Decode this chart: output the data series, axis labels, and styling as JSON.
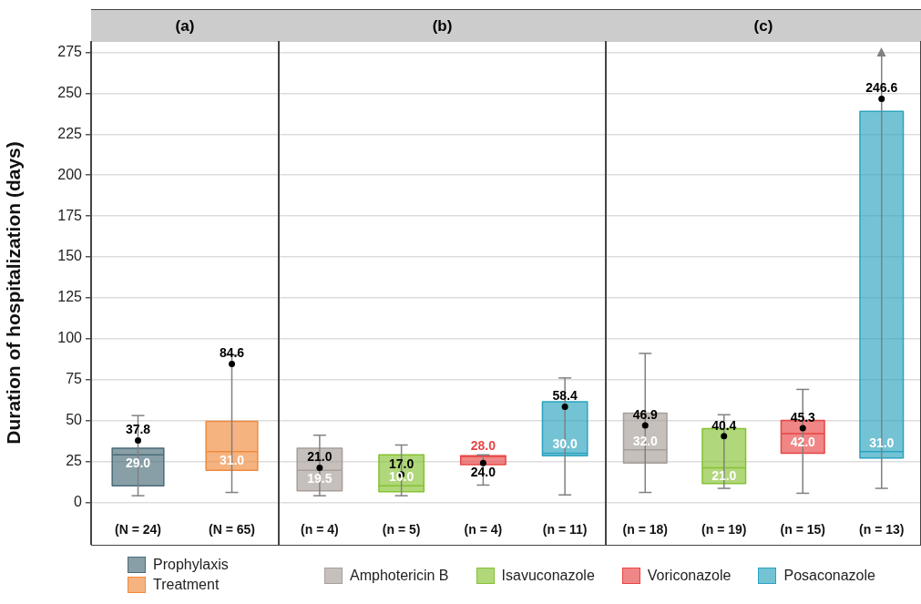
{
  "chart_data": [
    {
      "type": "box",
      "title": "(a)",
      "ylabel": "Duration of hospitalization (days)",
      "categories": [
        "(N = 24)",
        "(N = 65)"
      ],
      "ylim": [
        -26,
        282
      ],
      "yticks": [
        0,
        25,
        50,
        75,
        100,
        125,
        150,
        175,
        200,
        225,
        250,
        275
      ],
      "grid": "y",
      "legend": "bottom",
      "marker": "circle",
      "series": [
        {
          "name": "Prophylaxis",
          "color": "#4a6b78",
          "boxes": [
            {
              "low": 4,
              "q1": 10,
              "median": 29.0,
              "q3": 33,
              "high": 53,
              "mean": 37.8
            },
            null
          ]
        },
        {
          "name": "Treatment",
          "color": "#f08a3c",
          "boxes": [
            null,
            {
              "low": 6,
              "q1": 19.5,
              "median": 31.0,
              "q3": 49.5,
              "high": 90,
              "mean": 84.6
            }
          ]
        }
      ],
      "annotations": [
        {
          "text": "29.0",
          "x": "(N = 24)",
          "y": 29.0
        },
        {
          "text": "37.8",
          "x": "(N = 24)",
          "y": 37.8
        },
        {
          "text": "31.0",
          "x": "(N = 65)",
          "y": 31.0
        },
        {
          "text": "84.6",
          "x": "(N = 65)",
          "y": 84.6
        }
      ]
    },
    {
      "type": "box",
      "title": "(b)",
      "categories": [
        "(n = 4)",
        "(n = 5)",
        "(n = 4)",
        "(n = 11)"
      ],
      "ylim": [
        -26,
        282
      ],
      "yticks": [
        0,
        25,
        50,
        75,
        100,
        125,
        150,
        175,
        200,
        225,
        250,
        275
      ],
      "grid": "y",
      "tick_labels": "x",
      "marker": "circle",
      "series": [
        {
          "color": "#a89e98",
          "boxes": [
            {
              "low": 4,
              "q1": 7,
              "median": 19.5,
              "q3": 33,
              "high": 41,
              "mean": 21.0
            },
            null,
            null,
            null
          ]
        },
        {
          "color": "#86c232",
          "boxes": [
            null,
            {
              "low": 4,
              "q1": 6.5,
              "median": 10.0,
              "q3": 29,
              "high": 35,
              "mean": 17.0
            },
            null,
            null
          ]
        },
        {
          "color": "#e84545",
          "boxes": [
            null,
            null,
            {
              "low": 10.5,
              "q1": 23,
              "median": 28.0,
              "q3": 28.5,
              "high": 29,
              "mean": 24.0
            },
            null
          ]
        },
        {
          "color": "#2aa3bf",
          "boxes": [
            null,
            null,
            null,
            {
              "low": 4.5,
              "q1": 28.5,
              "median": 30.0,
              "q3": 61.5,
              "high": 76,
              "mean": 58.4
            }
          ]
        }
      ],
      "annotations": [
        {
          "text": "19.5",
          "x": "(n = 4)",
          "y": 19.5
        },
        {
          "text": "21.0",
          "x": "(n = 4)",
          "y": 21.0
        },
        {
          "text": "10.0",
          "x": "(n = 5)",
          "y": 10.0
        },
        {
          "text": "17.0",
          "x": "(n = 5)",
          "y": 17.0
        },
        {
          "text": "28.0",
          "y": 28.0
        },
        {
          "text": "24.0",
          "y": 24.0
        },
        {
          "text": "30.0",
          "x": "(n = 11)",
          "y": 30.0
        },
        {
          "text": "58.4",
          "x": "(n = 11)",
          "y": 58.4
        }
      ]
    },
    {
      "type": "box",
      "title": "(c)",
      "categories": [
        "(n = 18)",
        "(n = 19)",
        "(n = 15)",
        "(n = 13)"
      ],
      "ylim": [
        -26,
        282
      ],
      "yticks": [
        0,
        25,
        50,
        75,
        100,
        125,
        150,
        175,
        200,
        225,
        250,
        275
      ],
      "grid": "y",
      "tick_labels": "x",
      "legend": "bottom",
      "marker": "circle",
      "series": [
        {
          "name": "Amphotericin B",
          "color": "#a89e98",
          "boxes": [
            {
              "low": 6,
              "q1": 24,
              "median": 32.0,
              "q3": 54.5,
              "high": 91,
              "mean": 46.9
            },
            null,
            null,
            null
          ]
        },
        {
          "name": "Isavuconazole",
          "color": "#86c232",
          "boxes": [
            null,
            {
              "low": 8.5,
              "q1": 11.5,
              "median": 21.0,
              "q3": 45,
              "high": 53.5,
              "mean": 40.4
            },
            null,
            null
          ]
        },
        {
          "name": "Voriconazole",
          "color": "#e84545",
          "boxes": [
            null,
            null,
            {
              "low": 5.5,
              "q1": 30,
              "median": 42.0,
              "q3": 50,
              "high": 69,
              "mean": 45.3
            },
            null
          ]
        },
        {
          "name": "Posaconazole",
          "color": "#2aa3bf",
          "boxes": [
            null,
            null,
            null,
            {
              "low": 8.5,
              "q1": 27,
              "median": 31.0,
              "q3": 239,
              "high": 275,
              "mean": 246.6
            }
          ]
        }
      ],
      "annotations": [
        {
          "text": "32.0",
          "x": "(n = 18)",
          "y": 32.0
        },
        {
          "text": "46.9",
          "x": "(n = 18)",
          "y": 46.9
        },
        {
          "text": "21.0",
          "x": "(n = 19)",
          "y": 21.0
        },
        {
          "text": "40.4",
          "x": "(n = 19)",
          "y": 40.4
        },
        {
          "text": "42.0",
          "x": "(n = 15)",
          "y": 42.0
        },
        {
          "text": "45.3",
          "x": "(n = 15)",
          "y": 45.3
        },
        {
          "text": "31.0",
          "x": "(n = 13)",
          "y": 31.0
        },
        {
          "text": "246.6",
          "x": "(n = 13)",
          "y": 246.6
        }
      ]
    }
  ]
}
